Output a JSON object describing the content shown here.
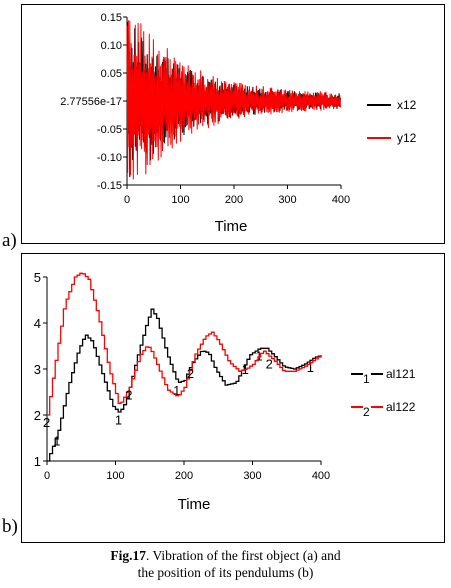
{
  "figure": {
    "panel_a_label": "a)",
    "panel_b_label": "b)",
    "caption_bold": "Fig.17",
    "caption_line1": ". Vibration of the first object (a) and",
    "caption_line2": "the position of its pendulums (b)"
  },
  "chart_data": [
    {
      "type": "line",
      "xlabel": "Time",
      "xlim": [
        0,
        400
      ],
      "ylim": [
        -0.15,
        0.15
      ],
      "xticks": [
        "0",
        "100",
        "200",
        "300",
        "400"
      ],
      "yticks": [
        "0.15",
        "0.10",
        "0.05",
        "2.77556e-17",
        "-0.05",
        "-0.10",
        "-0.15"
      ],
      "grid": false,
      "legend_position": "right",
      "series": [
        {
          "name": "x12",
          "color": "#000000",
          "x": [
            0,
            20,
            40,
            60,
            80,
            100,
            120,
            140,
            160,
            180,
            200,
            220,
            240,
            260,
            280,
            300,
            320,
            340,
            360,
            380,
            400
          ],
          "envelope": [
            0.15,
            0.13,
            0.11,
            0.09,
            0.075,
            0.065,
            0.055,
            0.047,
            0.04,
            0.035,
            0.031,
            0.028,
            0.025,
            0.023,
            0.021,
            0.019,
            0.018,
            0.017,
            0.016,
            0.015,
            0.014
          ]
        },
        {
          "name": "y12",
          "color": "#ff0000",
          "x": [
            0,
            20,
            40,
            60,
            80,
            100,
            120,
            140,
            160,
            180,
            200,
            220,
            240,
            260,
            280,
            300,
            320,
            340,
            360,
            380,
            400
          ],
          "envelope": [
            0.15,
            0.15,
            0.13,
            0.11,
            0.09,
            0.075,
            0.063,
            0.054,
            0.046,
            0.04,
            0.035,
            0.031,
            0.028,
            0.026,
            0.024,
            0.022,
            0.02,
            0.019,
            0.018,
            0.017,
            0.016
          ]
        }
      ]
    },
    {
      "type": "line",
      "xlabel": "Time",
      "xlim": [
        0,
        400
      ],
      "ylim": [
        1,
        5
      ],
      "xticks": [
        "0",
        "100",
        "200",
        "300",
        "400"
      ],
      "yticks": [
        "5",
        "4",
        "3",
        "2",
        "1"
      ],
      "grid": false,
      "legend_position": "right",
      "series": [
        {
          "name": "al121",
          "marker": "1",
          "color": "#000000",
          "x": [
            0,
            15,
            30,
            45,
            55,
            65,
            80,
            95,
            105,
            115,
            130,
            145,
            152,
            160,
            175,
            190,
            200,
            210,
            225,
            235,
            245,
            260,
            275,
            285,
            295,
            310,
            320,
            330,
            345,
            360,
            375,
            390,
            400
          ],
          "y": [
            1.0,
            1.6,
            2.6,
            3.4,
            3.75,
            3.6,
            2.9,
            2.2,
            2.05,
            2.3,
            3.2,
            4.0,
            4.3,
            4.1,
            3.3,
            2.7,
            2.75,
            3.1,
            3.4,
            3.35,
            3.0,
            2.65,
            2.7,
            3.0,
            3.3,
            3.45,
            3.45,
            3.3,
            3.05,
            3.0,
            3.1,
            3.25,
            3.3
          ],
          "marker_x": [
            15,
            105,
            190,
            290,
            310,
            385
          ]
        },
        {
          "name": "al122",
          "marker": "2",
          "color": "#ff0000",
          "x": [
            0,
            10,
            25,
            40,
            50,
            60,
            75,
            90,
            105,
            120,
            135,
            145,
            150,
            160,
            175,
            190,
            200,
            215,
            230,
            240,
            250,
            265,
            280,
            290,
            300,
            315,
            330,
            345,
            360,
            375,
            390,
            400
          ],
          "y": [
            2.0,
            3.0,
            4.4,
            5.0,
            5.1,
            4.95,
            4.1,
            3.0,
            2.2,
            2.6,
            3.3,
            3.5,
            3.45,
            3.1,
            2.55,
            2.4,
            2.6,
            3.3,
            3.7,
            3.8,
            3.6,
            3.15,
            2.95,
            3.0,
            3.1,
            3.4,
            3.2,
            2.95,
            2.95,
            3.05,
            3.2,
            3.3
          ],
          "marker_x": [
            0,
            120,
            210,
            325
          ]
        }
      ]
    }
  ]
}
